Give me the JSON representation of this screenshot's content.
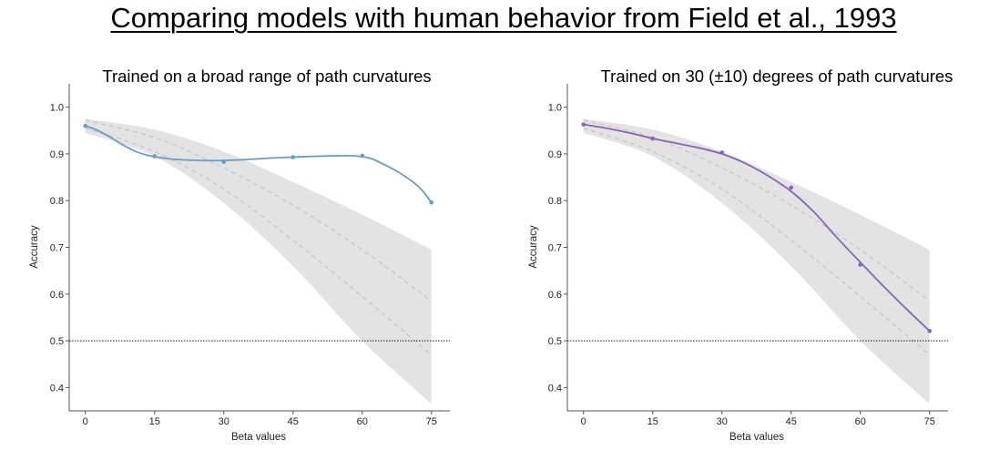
{
  "figure_title": "Comparing models with human behavior from Field et al., 1993",
  "chart_data": [
    {
      "type": "line",
      "title": "Trained on a broad range of path curvatures",
      "xlabel": "Beta values",
      "ylabel": "Accuracy",
      "x": [
        0,
        15,
        30,
        45,
        60,
        75
      ],
      "xlim": [
        -3.5,
        79
      ],
      "ylim": [
        0.35,
        1.05
      ],
      "xticks": [
        "0",
        "15",
        "30",
        "45",
        "60",
        "75"
      ],
      "yticks": [
        "0.4",
        "0.5",
        "0.6",
        "0.7",
        "0.8",
        "0.9",
        "1.0"
      ],
      "chance_level": 0.5,
      "human_band": {
        "x": [
          0,
          15,
          30,
          45,
          60,
          75
        ],
        "upper": [
          0.975,
          0.952,
          0.905,
          0.84,
          0.77,
          0.695
        ],
        "lower": [
          0.945,
          0.895,
          0.795,
          0.66,
          0.5,
          0.365
        ],
        "mean_upper": [
          0.972,
          0.935,
          0.87,
          0.79,
          0.695,
          0.585
        ],
        "mean_lower": [
          0.955,
          0.905,
          0.825,
          0.715,
          0.595,
          0.47
        ]
      },
      "series": [
        {
          "color": "#6a9bc8",
          "values": [
            0.96,
            0.895,
            0.883,
            0.893,
            0.896,
            0.796
          ],
          "curve": [
            [
              0,
              0.96
            ],
            [
              2,
              0.953
            ],
            [
              5,
              0.938
            ],
            [
              8,
              0.92
            ],
            [
              11,
              0.905
            ],
            [
              14,
              0.896
            ],
            [
              17,
              0.891
            ],
            [
              20,
              0.888
            ],
            [
              25,
              0.886
            ],
            [
              30,
              0.886
            ],
            [
              35,
              0.888
            ],
            [
              40,
              0.891
            ],
            [
              45,
              0.893
            ],
            [
              50,
              0.895
            ],
            [
              55,
              0.896
            ],
            [
              58,
              0.896
            ],
            [
              60,
              0.894
            ],
            [
              62,
              0.89
            ],
            [
              65,
              0.876
            ],
            [
              68,
              0.86
            ],
            [
              71,
              0.84
            ],
            [
              73,
              0.822
            ],
            [
              75,
              0.796
            ]
          ]
        }
      ]
    },
    {
      "type": "line",
      "title": "Trained on 30 (±10) degrees of path curvatures",
      "xlabel": "Beta values",
      "ylabel": "Accuracy",
      "x": [
        0,
        15,
        30,
        45,
        60,
        75
      ],
      "xlim": [
        -3.5,
        79
      ],
      "ylim": [
        0.35,
        1.05
      ],
      "xticks": [
        "0",
        "15",
        "30",
        "45",
        "60",
        "75"
      ],
      "yticks": [
        "0.4",
        "0.5",
        "0.6",
        "0.7",
        "0.8",
        "0.9",
        "1.0"
      ],
      "chance_level": 0.5,
      "human_band": {
        "x": [
          0,
          15,
          30,
          45,
          60,
          75
        ],
        "upper": [
          0.975,
          0.952,
          0.905,
          0.84,
          0.77,
          0.695
        ],
        "lower": [
          0.945,
          0.895,
          0.795,
          0.66,
          0.5,
          0.365
        ],
        "mean_upper": [
          0.972,
          0.935,
          0.87,
          0.79,
          0.695,
          0.585
        ],
        "mean_lower": [
          0.955,
          0.905,
          0.825,
          0.715,
          0.595,
          0.47
        ]
      },
      "series": [
        {
          "color": "#8a62b8",
          "values": [
            0.963,
            0.933,
            0.903,
            0.828,
            0.663,
            0.521
          ],
          "curve": [
            [
              0,
              0.963
            ],
            [
              5,
              0.955
            ],
            [
              10,
              0.945
            ],
            [
              15,
              0.933
            ],
            [
              20,
              0.923
            ],
            [
              25,
              0.913
            ],
            [
              30,
              0.9
            ],
            [
              35,
              0.88
            ],
            [
              40,
              0.853
            ],
            [
              45,
              0.82
            ],
            [
              50,
              0.775
            ],
            [
              55,
              0.72
            ],
            [
              60,
              0.668
            ],
            [
              65,
              0.617
            ],
            [
              70,
              0.568
            ],
            [
              75,
              0.521
            ]
          ]
        }
      ]
    }
  ]
}
